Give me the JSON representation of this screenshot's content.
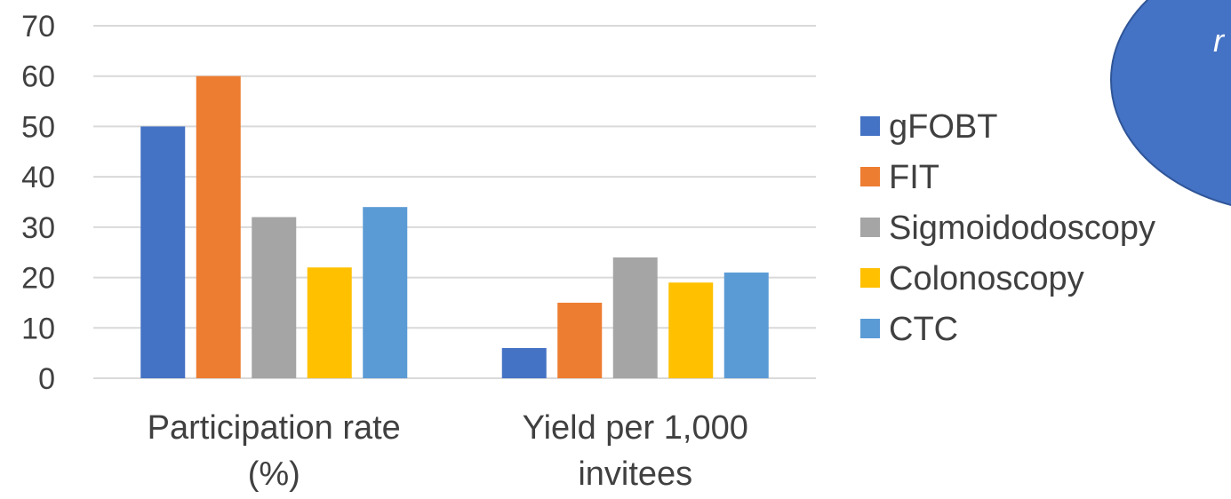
{
  "chart_data": {
    "type": "bar",
    "categories": [
      [
        "Participation rate",
        "(%)"
      ],
      [
        "Yield per 1,000",
        "invitees"
      ]
    ],
    "series": [
      {
        "name": "gFOBT",
        "color": "#4472C4",
        "values": [
          50,
          6
        ]
      },
      {
        "name": "FIT",
        "color": "#ED7D31",
        "values": [
          60,
          15
        ]
      },
      {
        "name": "Sigmoidodoscopy",
        "color": "#A5A5A5",
        "values": [
          32,
          24
        ]
      },
      {
        "name": "Colonoscopy",
        "color": "#FFC000",
        "values": [
          22,
          19
        ]
      },
      {
        "name": "CTC",
        "color": "#5B9BD5",
        "values": [
          34,
          21
        ]
      }
    ],
    "ylim": [
      0,
      70
    ],
    "yticks": [
      0,
      10,
      20,
      30,
      40,
      50,
      60,
      70
    ],
    "grid": true,
    "legend_position": "right",
    "gridline_color": "#D9D9D9"
  },
  "callout": {
    "text": "r",
    "color": "#4472C4",
    "border_color": "#2F5597"
  }
}
